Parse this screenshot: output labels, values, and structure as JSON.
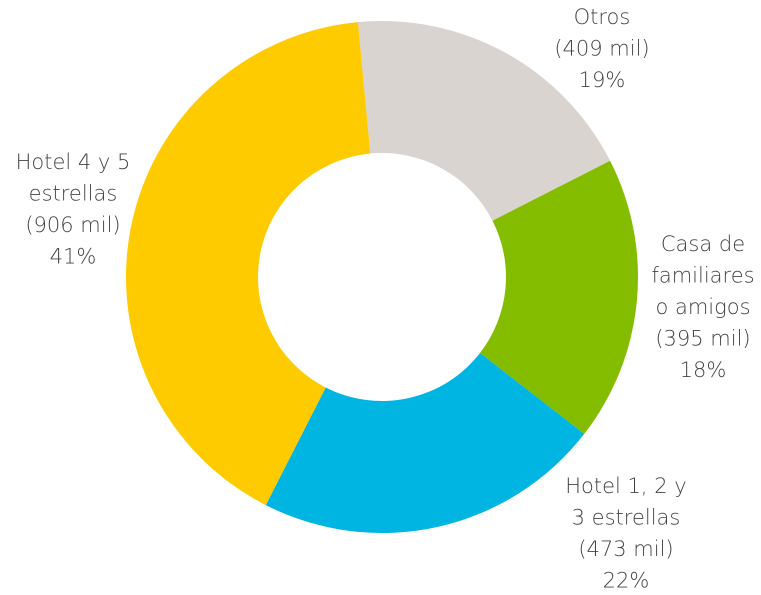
{
  "chart_data": {
    "type": "donut",
    "categories": [
      [
        "Otros"
      ],
      [
        "Casa de",
        "familiares",
        "o amigos"
      ],
      [
        "Hotel 1, 2 y",
        "3 estrellas"
      ],
      [
        "Hotel 4 y 5",
        "estrellas"
      ]
    ],
    "amount_labels": [
      "(409 mil)",
      "(395 mil)",
      "(473 mil)",
      "(906 mil)"
    ],
    "values": [
      19,
      18,
      22,
      41
    ],
    "value_labels": [
      "19%",
      "18%",
      "22%",
      "41%"
    ],
    "colors": [
      "#d9d4cf",
      "#84bd00",
      "#00b5e2",
      "#fecb00"
    ]
  }
}
